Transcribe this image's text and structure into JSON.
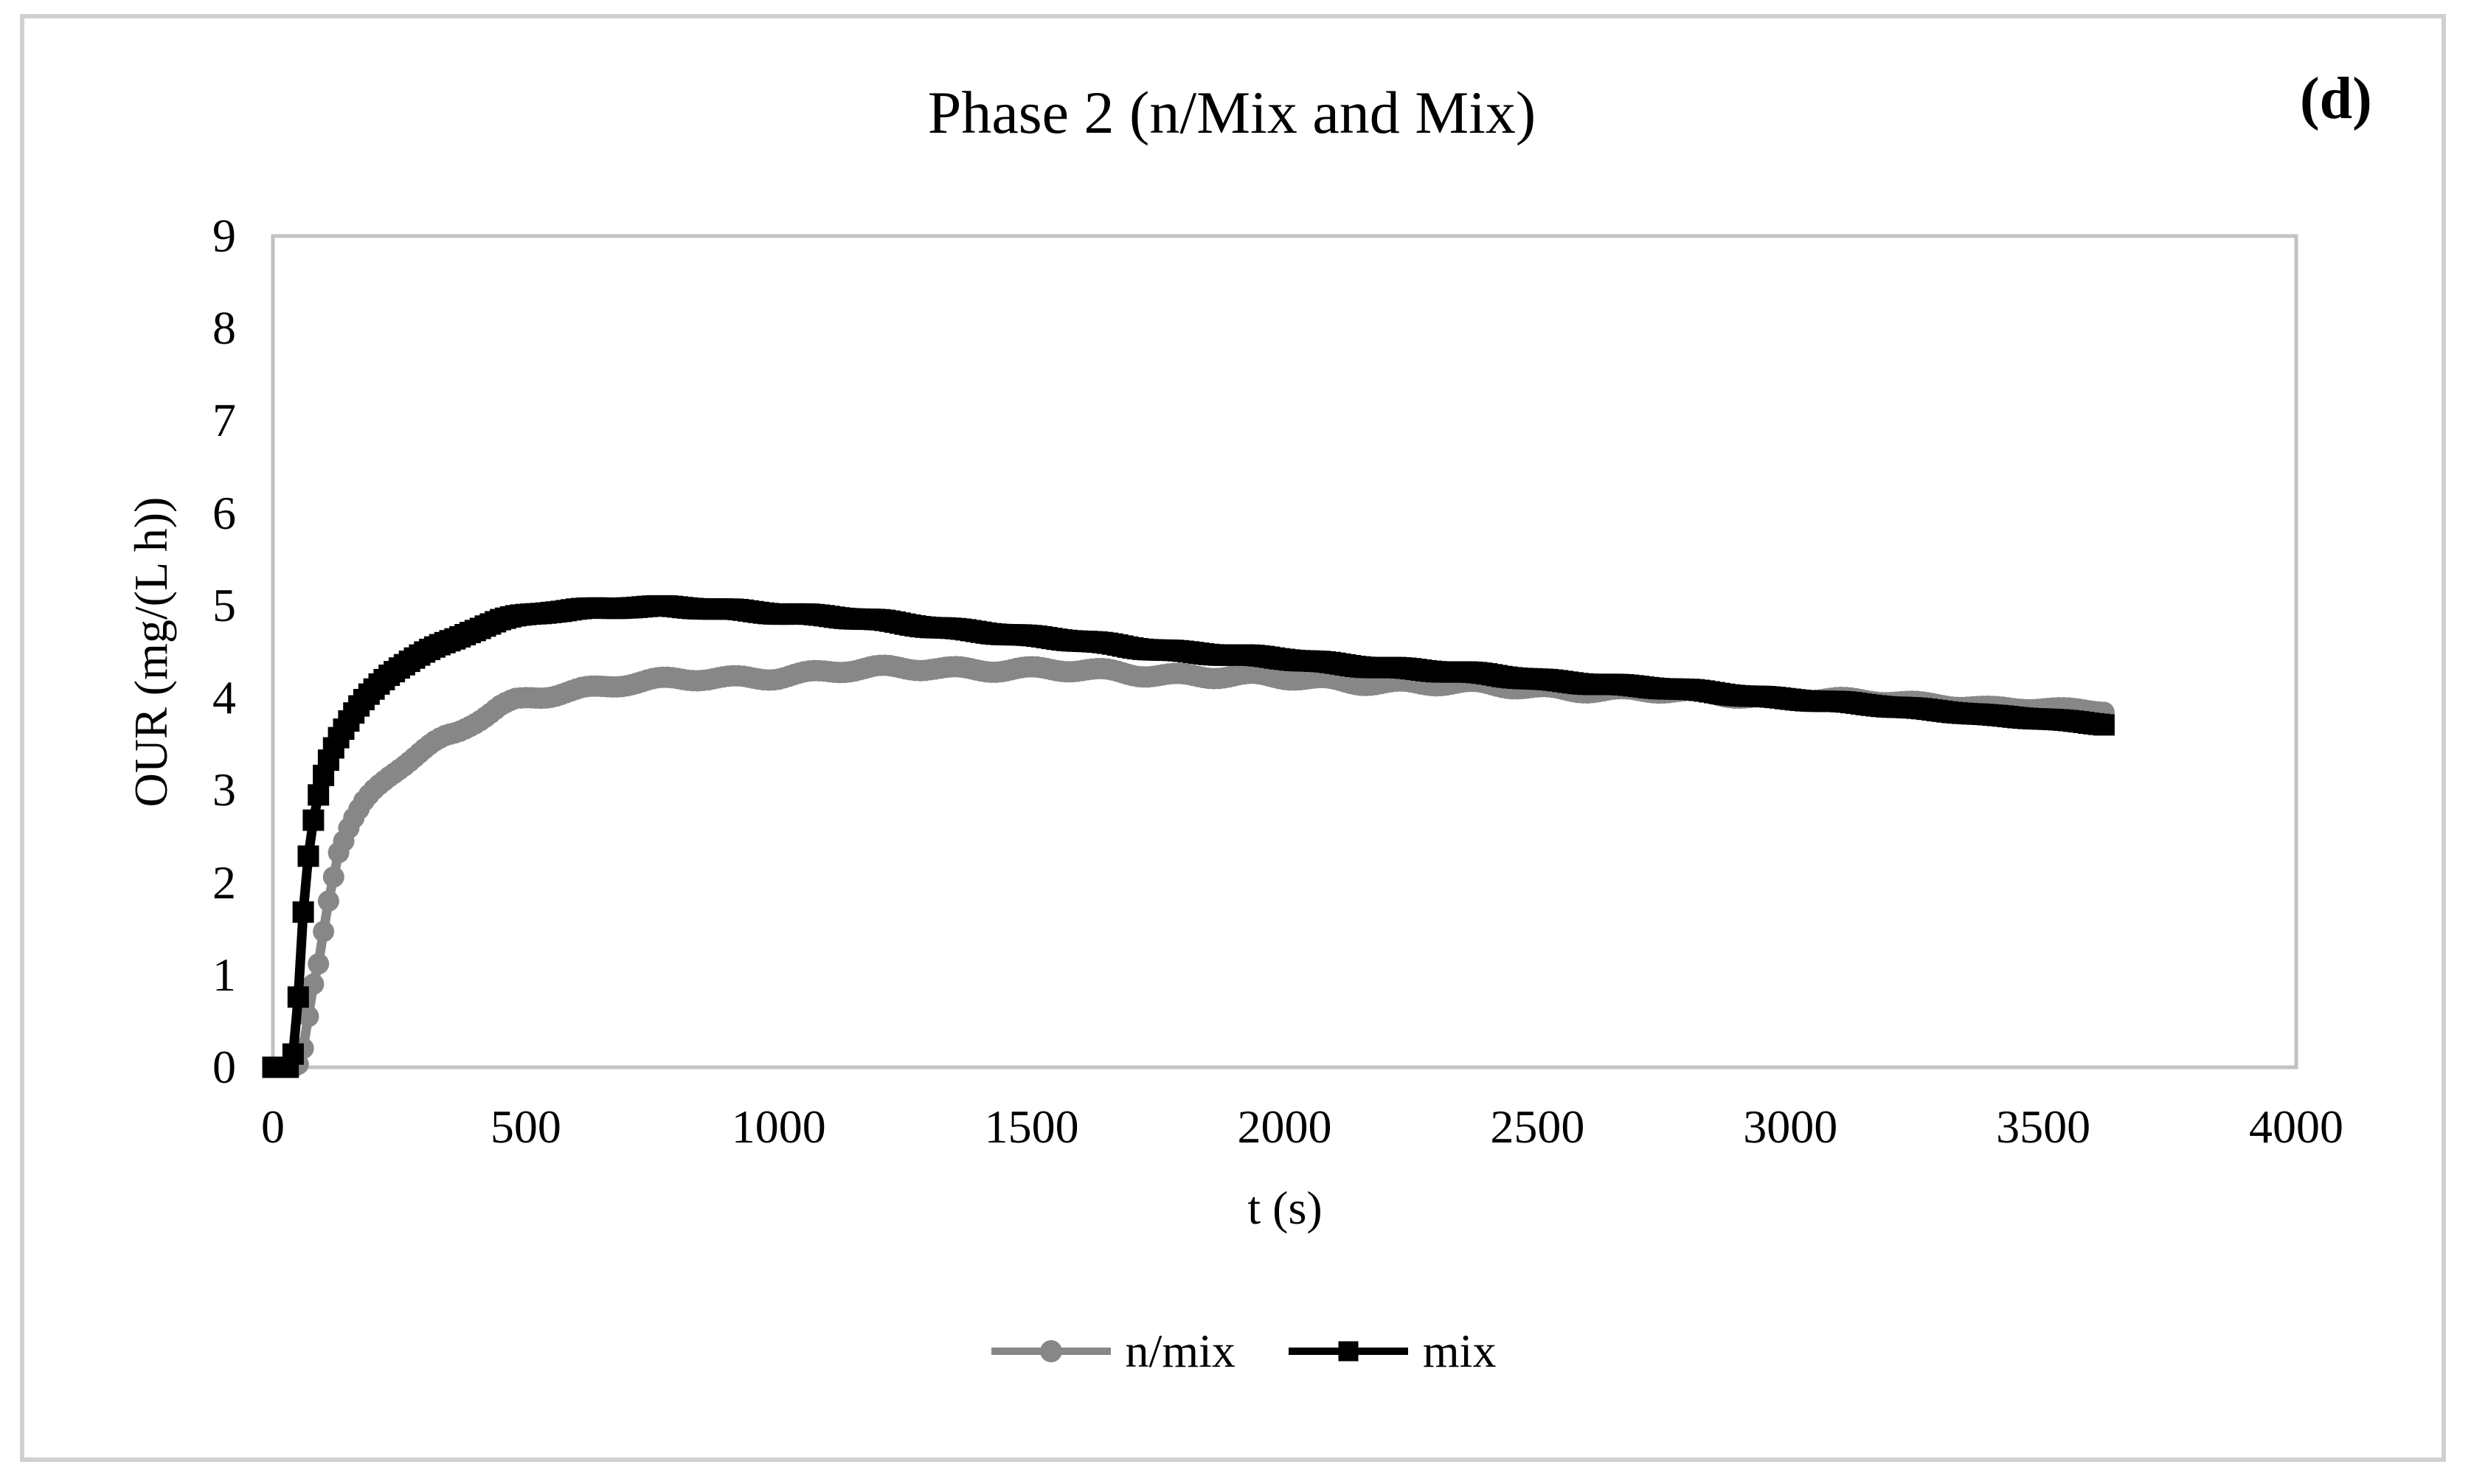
{
  "figure": {
    "title": "Phase 2 (n/Mix and Mix)",
    "panel_label": "(d)"
  },
  "colors": {
    "background": "#ffffff",
    "page_frame": "#d2d0ce",
    "axis_frame": "#c2c2c2",
    "series_nmix": "#878787",
    "series_mix": "#000000"
  },
  "chart_data": {
    "type": "line",
    "title": "Phase 2 (n/Mix and Mix)",
    "xlabel": "t (s)",
    "ylabel": "OUR (mg/(L h))",
    "xlim": [
      0,
      4000
    ],
    "ylim": [
      0,
      9
    ],
    "x_ticks": [
      0,
      500,
      1000,
      1500,
      2000,
      2500,
      3000,
      3500,
      4000
    ],
    "y_ticks": [
      0,
      1,
      2,
      3,
      4,
      5,
      6,
      7,
      8,
      9
    ],
    "grid": false,
    "legend_position": "bottom-center",
    "series": [
      {
        "name": "n/mix",
        "color": "#878787",
        "marker": "circle",
        "jitter": 0.028,
        "points": [
          [
            0,
            0
          ],
          [
            40,
            0
          ],
          [
            55,
            0.05
          ],
          [
            63,
            0.3
          ],
          [
            70,
            0.55
          ],
          [
            80,
            0.9
          ],
          [
            88,
            1.05
          ],
          [
            98,
            1.4
          ],
          [
            108,
            1.75
          ],
          [
            118,
            2
          ],
          [
            128,
            2.3
          ],
          [
            140,
            2.45
          ],
          [
            152,
            2.62
          ],
          [
            165,
            2.75
          ],
          [
            180,
            2.88
          ],
          [
            195,
            2.98
          ],
          [
            210,
            3.06
          ],
          [
            230,
            3.16
          ],
          [
            250,
            3.25
          ],
          [
            270,
            3.33
          ],
          [
            290,
            3.4
          ],
          [
            315,
            3.48
          ],
          [
            340,
            3.55
          ],
          [
            365,
            3.61
          ],
          [
            390,
            3.7
          ],
          [
            420,
            3.8
          ],
          [
            450,
            3.9
          ],
          [
            480,
            3.97
          ],
          [
            510,
            4.01
          ],
          [
            540,
            4.04
          ],
          [
            570,
            4.07
          ],
          [
            610,
            4.1
          ],
          [
            650,
            4.12
          ],
          [
            700,
            4.15
          ],
          [
            750,
            4.17
          ],
          [
            800,
            4.19
          ],
          [
            850,
            4.21
          ],
          [
            900,
            4.22
          ],
          [
            950,
            4.23
          ],
          [
            1000,
            4.24
          ],
          [
            1100,
            4.28
          ],
          [
            1200,
            4.31
          ],
          [
            1300,
            4.33
          ],
          [
            1400,
            4.32
          ],
          [
            1500,
            4.3
          ],
          [
            1600,
            4.29
          ],
          [
            1700,
            4.27
          ],
          [
            1800,
            4.25
          ],
          [
            1900,
            4.23
          ],
          [
            2000,
            4.21
          ],
          [
            2100,
            4.19
          ],
          [
            2200,
            4.17
          ],
          [
            2300,
            4.15
          ],
          [
            2400,
            4.13
          ],
          [
            2500,
            4.11
          ],
          [
            2600,
            4.09
          ],
          [
            2700,
            4.07
          ],
          [
            2800,
            4.05
          ],
          [
            2900,
            4.02
          ],
          [
            3000,
            4
          ],
          [
            3100,
            3.98
          ],
          [
            3200,
            3.95
          ],
          [
            3300,
            3.93
          ],
          [
            3400,
            3.9
          ],
          [
            3500,
            3.88
          ],
          [
            3620,
            3.85
          ]
        ]
      },
      {
        "name": "mix",
        "color": "#000000",
        "marker": "square",
        "jitter": 0.01,
        "points": [
          [
            0,
            0
          ],
          [
            20,
            0
          ],
          [
            35,
            0
          ],
          [
            42,
            0.2
          ],
          [
            48,
            0.6
          ],
          [
            53,
            1
          ],
          [
            58,
            1.5
          ],
          [
            63,
            1.95
          ],
          [
            68,
            2.2
          ],
          [
            75,
            2.5
          ],
          [
            83,
            2.78
          ],
          [
            93,
            3.02
          ],
          [
            103,
            3.22
          ],
          [
            115,
            3.4
          ],
          [
            128,
            3.55
          ],
          [
            142,
            3.68
          ],
          [
            158,
            3.82
          ],
          [
            175,
            3.95
          ],
          [
            192,
            4.05
          ],
          [
            210,
            4.15
          ],
          [
            230,
            4.25
          ],
          [
            252,
            4.34
          ],
          [
            275,
            4.42
          ],
          [
            300,
            4.49
          ],
          [
            330,
            4.56
          ],
          [
            360,
            4.63
          ],
          [
            390,
            4.71
          ],
          [
            420,
            4.78
          ],
          [
            450,
            4.84
          ],
          [
            480,
            4.88
          ],
          [
            510,
            4.91
          ],
          [
            550,
            4.94
          ],
          [
            600,
            4.96
          ],
          [
            650,
            4.97
          ],
          [
            700,
            4.98
          ],
          [
            780,
            4.98
          ],
          [
            850,
            4.97
          ],
          [
            920,
            4.95
          ],
          [
            1000,
            4.92
          ],
          [
            1100,
            4.88
          ],
          [
            1200,
            4.83
          ],
          [
            1300,
            4.77
          ],
          [
            1400,
            4.72
          ],
          [
            1500,
            4.66
          ],
          [
            1600,
            4.61
          ],
          [
            1700,
            4.55
          ],
          [
            1800,
            4.5
          ],
          [
            1900,
            4.46
          ],
          [
            2000,
            4.42
          ],
          [
            2100,
            4.37
          ],
          [
            2200,
            4.33
          ],
          [
            2300,
            4.29
          ],
          [
            2400,
            4.25
          ],
          [
            2500,
            4.2
          ],
          [
            2600,
            4.16
          ],
          [
            2700,
            4.12
          ],
          [
            2800,
            4.08
          ],
          [
            2900,
            4.03
          ],
          [
            3000,
            3.99
          ],
          [
            3100,
            3.95
          ],
          [
            3200,
            3.9
          ],
          [
            3300,
            3.86
          ],
          [
            3400,
            3.81
          ],
          [
            3500,
            3.77
          ],
          [
            3620,
            3.71
          ]
        ]
      }
    ]
  }
}
